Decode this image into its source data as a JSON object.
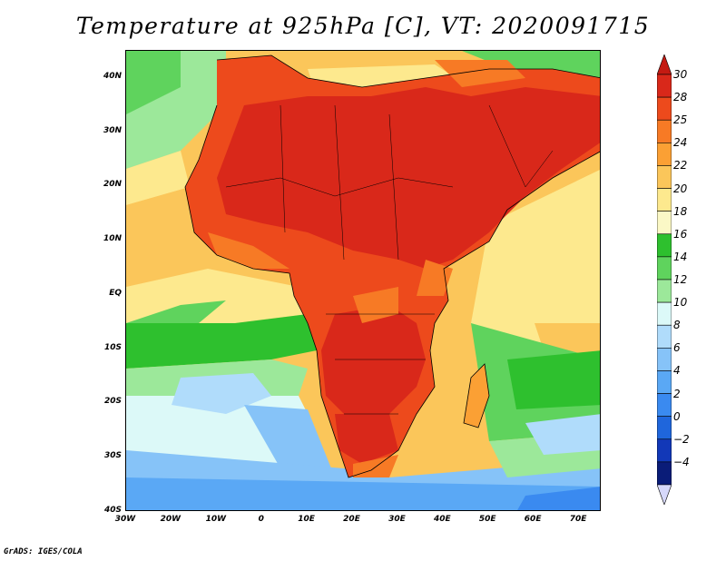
{
  "title": "Temperature at 925hPa [C], VT: 2020091715",
  "credit": "GrADS: IGES/COLA",
  "map": {
    "lat_range": [
      -40,
      45
    ],
    "lon_range": [
      -30,
      75
    ],
    "y_ticks": [
      {
        "value": 40,
        "label": "40N"
      },
      {
        "value": 30,
        "label": "30N"
      },
      {
        "value": 20,
        "label": "20N"
      },
      {
        "value": 10,
        "label": "10N"
      },
      {
        "value": 0,
        "label": "EQ"
      },
      {
        "value": -10,
        "label": "10S"
      },
      {
        "value": -20,
        "label": "20S"
      },
      {
        "value": -30,
        "label": "30S"
      },
      {
        "value": -40,
        "label": "40S"
      }
    ],
    "x_ticks": [
      {
        "value": -30,
        "label": "30W"
      },
      {
        "value": -20,
        "label": "20W"
      },
      {
        "value": -10,
        "label": "10W"
      },
      {
        "value": 0,
        "label": "0"
      },
      {
        "value": 10,
        "label": "10E"
      },
      {
        "value": 20,
        "label": "20E"
      },
      {
        "value": 30,
        "label": "30E"
      },
      {
        "value": 40,
        "label": "40E"
      },
      {
        "value": 50,
        "label": "50E"
      },
      {
        "value": 60,
        "label": "60E"
      },
      {
        "value": 70,
        "label": "70E"
      }
    ]
  },
  "colorbar": {
    "levels": [
      {
        "label": "30",
        "color": "#d9281a"
      },
      {
        "label": "28",
        "color": "#ed4a1c"
      },
      {
        "label": "25",
        "color": "#f77a25"
      },
      {
        "label": "24",
        "color": "#fba034"
      },
      {
        "label": "22",
        "color": "#fbc65a"
      },
      {
        "label": "20",
        "color": "#fde98e"
      },
      {
        "label": "18",
        "color": "#fbf8c6"
      },
      {
        "label": "16",
        "color": "#2ec02e"
      },
      {
        "label": "14",
        "color": "#5fd35d"
      },
      {
        "label": "12",
        "color": "#9ce89a"
      },
      {
        "label": "10",
        "color": "#dcf9f8"
      },
      {
        "label": "8",
        "color": "#b0dcfb"
      },
      {
        "label": "6",
        "color": "#86c3f8"
      },
      {
        "label": "4",
        "color": "#5aa8f5"
      },
      {
        "label": "2",
        "color": "#3a8af0"
      },
      {
        "label": "0",
        "color": "#1f66dc"
      },
      {
        "label": "−2",
        "color": "#1238b8"
      },
      {
        "label": "−4",
        "color": "#0a1c78"
      }
    ],
    "top_color": "#c41a12",
    "bottom_color": "#d6d8fa"
  }
}
